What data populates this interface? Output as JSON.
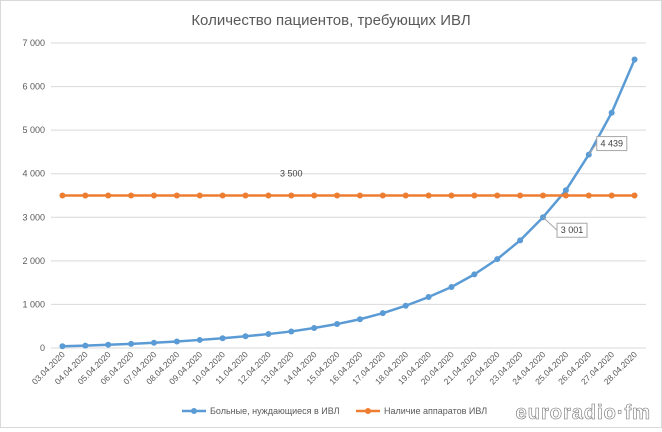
{
  "chart_data": {
    "type": "line",
    "title": "Количество пациентов, требующих ИВЛ",
    "xlabel": "",
    "ylabel": "",
    "ylim": [
      0,
      7000
    ],
    "yticks": [
      0,
      1000,
      2000,
      3000,
      4000,
      5000,
      6000,
      7000
    ],
    "ytick_labels": [
      "0",
      "1 000",
      "2 000",
      "3 000",
      "4 000",
      "5 000",
      "6 000",
      "7 000"
    ],
    "grid": true,
    "legend_position": "bottom",
    "categories": [
      "03.04.2020",
      "04.04.2020",
      "05.04.2020",
      "06.04.2020",
      "07.04.2020",
      "08.04.2020",
      "09.04.2020",
      "10.04.2020",
      "11.04.2020",
      "12.04.2020",
      "13.04.2020",
      "14.04.2020",
      "15.04.2020",
      "16.04.2020",
      "17.04.2020",
      "18.04.2020",
      "19.04.2020",
      "20.04.2020",
      "21.04.2020",
      "22.04.2020",
      "23.04.2020",
      "24.04.2020",
      "25.04.2020",
      "26.04.2020",
      "27.04.2020",
      "28.04.2020"
    ],
    "series": [
      {
        "name": "Больные, нуждающиеся в ИВЛ",
        "color": "#5b9bd5",
        "values": [
          40,
          55,
          75,
          95,
          120,
          150,
          185,
          225,
          270,
          320,
          380,
          460,
          550,
          660,
          800,
          970,
          1170,
          1400,
          1690,
          2040,
          2470,
          3001,
          3620,
          4439,
          5400,
          6620
        ]
      },
      {
        "name": "Наличие аппаратов ИВЛ",
        "color": "#ed7d31",
        "values": [
          3500,
          3500,
          3500,
          3500,
          3500,
          3500,
          3500,
          3500,
          3500,
          3500,
          3500,
          3500,
          3500,
          3500,
          3500,
          3500,
          3500,
          3500,
          3500,
          3500,
          3500,
          3500,
          3500,
          3500,
          3500,
          3500
        ]
      }
    ],
    "annotations": [
      {
        "series": 1,
        "index": 10,
        "text": "3 500"
      },
      {
        "series": 0,
        "index": 21,
        "text": "3 001"
      },
      {
        "series": 0,
        "index": 23,
        "text": "4 439"
      }
    ]
  },
  "watermark": "euroradio·fm",
  "colors": {
    "grid": "#d9d9d9",
    "text": "#595959"
  }
}
